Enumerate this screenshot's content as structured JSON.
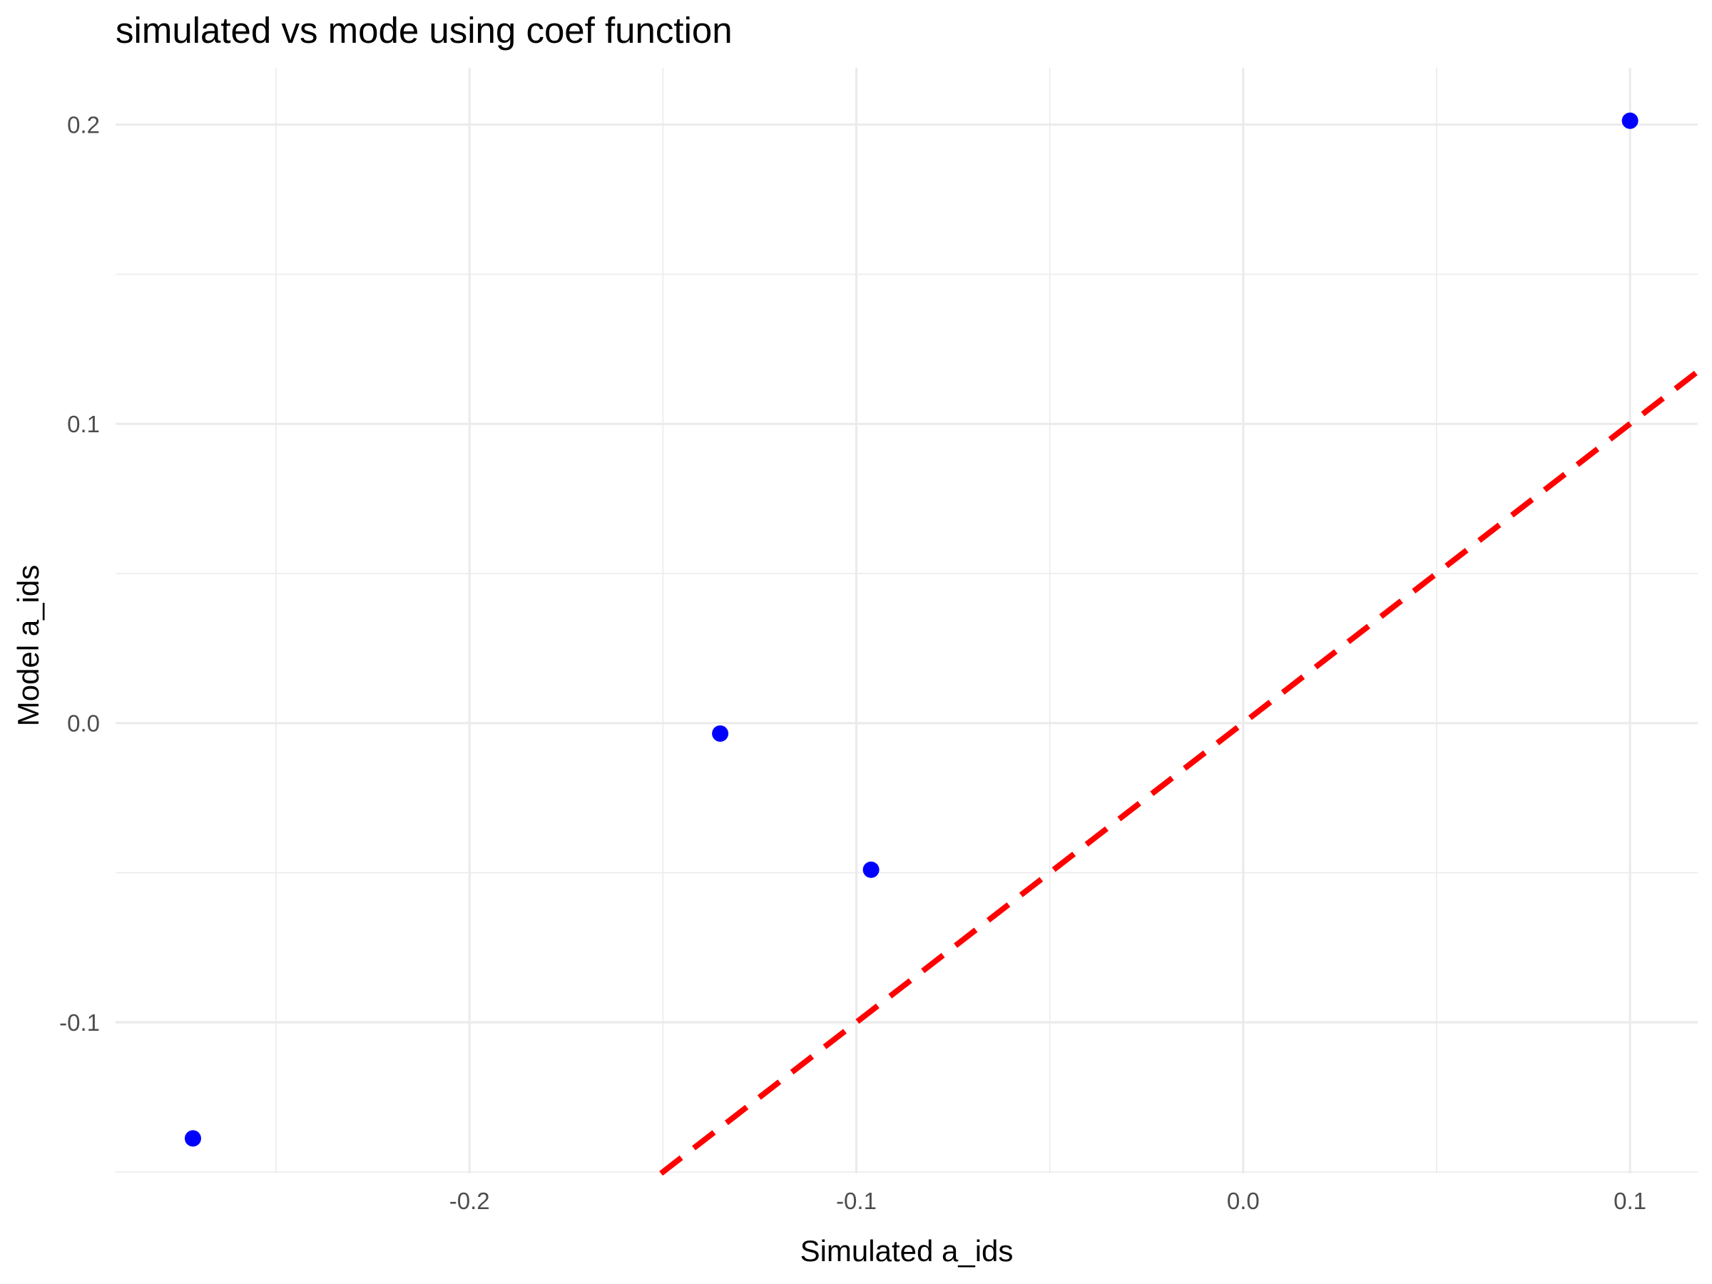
{
  "chart_data": {
    "type": "scatter",
    "title": "simulated vs mode using coef function",
    "xlabel": "Simulated a_ids",
    "ylabel": "Model a_ids",
    "xlim": [
      -0.2915,
      0.1175
    ],
    "ylim": [
      -0.1505,
      0.219
    ],
    "x_ticks": [
      -0.2,
      -0.1,
      0.0,
      0.1
    ],
    "x_tick_labels": [
      "-0.2",
      "-0.1",
      "0.0",
      "0.1"
    ],
    "y_ticks": [
      -0.1,
      0.0,
      0.1,
      0.2
    ],
    "y_tick_labels": [
      "-0.1",
      "0.0",
      "0.1",
      "0.2"
    ],
    "x_minor_ticks": [
      -0.25,
      -0.15,
      -0.05,
      0.05
    ],
    "y_minor_ticks": [
      -0.15,
      -0.05,
      0.05,
      0.15
    ],
    "grid": true,
    "point_color": "#0000ff",
    "points": [
      {
        "x": -0.2715,
        "y": -0.1388
      },
      {
        "x": -0.1352,
        "y": -0.0035
      },
      {
        "x": -0.0962,
        "y": -0.049
      },
      {
        "x": 0.1,
        "y": 0.2013
      }
    ],
    "reference_line": {
      "type": "identity",
      "slope": 1,
      "intercept": 0,
      "color": "#ff0000",
      "style": "dashed"
    }
  }
}
